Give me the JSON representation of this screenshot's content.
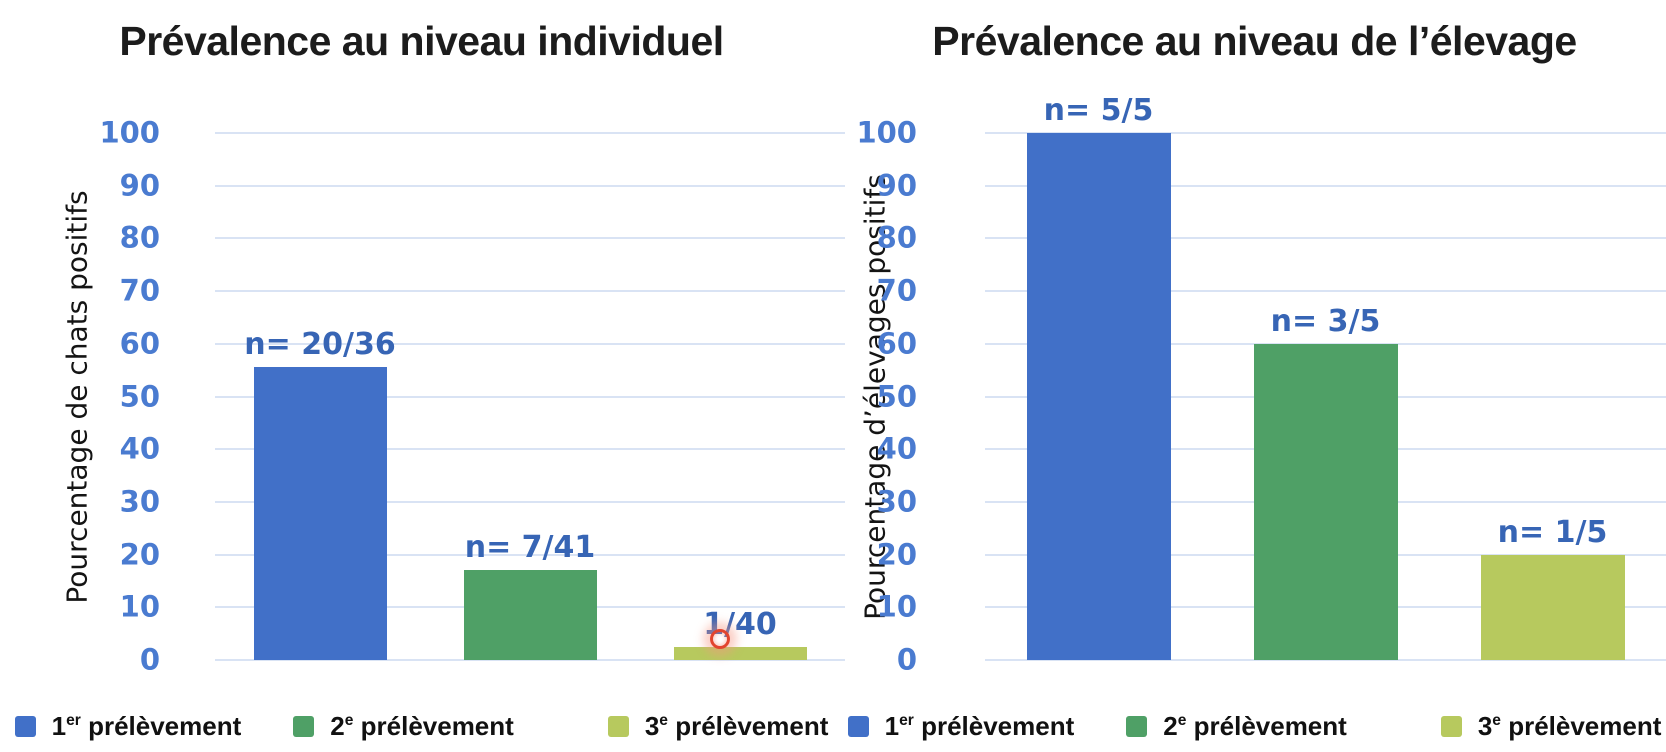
{
  "styles": {
    "tick_color": "#4a7bd0",
    "bar_label_color": "#3765b5",
    "gridline_color": "#d9e3f4",
    "title_color": "#1c1c1c",
    "click_indicator_color": "#e2452f"
  },
  "click_indicator": {
    "shape": "red-ring",
    "near_label": "1/40"
  },
  "chart_data": [
    {
      "type": "bar",
      "title": "Prévalence au niveau individuel",
      "ylabel": "Pourcentage de chats positifs",
      "xlabel": "",
      "ylim": [
        0,
        100
      ],
      "ytick_step": 10,
      "grid": "horizontal",
      "legend_position": "bottom",
      "categories": [
        "1er prélèvement",
        "2e prélèvement",
        "3e prélèvement"
      ],
      "values": [
        55.6,
        17.1,
        2.5
      ],
      "bar_labels": [
        "n= 20/36",
        "n= 7/41",
        "1/40"
      ],
      "colors": [
        "#4170c8",
        "#4fa066",
        "#b7c95e"
      ],
      "legend": [
        {
          "base": "1",
          "sup": "er",
          "rest": " prélèvement"
        },
        {
          "base": "2",
          "sup": "e",
          "rest": " prélèvement"
        },
        {
          "base": "3",
          "sup": "e",
          "rest": " prélèvement"
        }
      ]
    },
    {
      "type": "bar",
      "title": "Prévalence au niveau de l’élevage",
      "ylabel": "Pourcentage d’élevages positifs",
      "xlabel": "",
      "ylim": [
        0,
        100
      ],
      "ytick_step": 10,
      "grid": "horizontal",
      "legend_position": "bottom",
      "categories": [
        "1er prélèvement",
        "2e prélèvement",
        "3e prélèvement"
      ],
      "values": [
        100,
        60,
        20
      ],
      "bar_labels": [
        "n= 5/5",
        "n= 3/5",
        "n= 1/5"
      ],
      "colors": [
        "#4170c8",
        "#4fa066",
        "#b7c95e"
      ],
      "legend": [
        {
          "base": "1",
          "sup": "er",
          "rest": " prélèvement"
        },
        {
          "base": "2",
          "sup": "e",
          "rest": " prélèvement"
        },
        {
          "base": "3",
          "sup": "e",
          "rest": " prélèvement"
        }
      ]
    }
  ]
}
